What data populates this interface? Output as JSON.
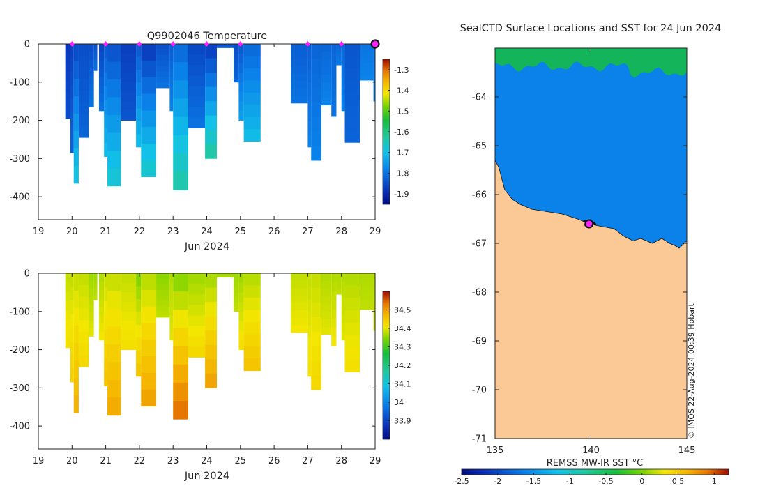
{
  "colors": {
    "land": "#fbc995",
    "deep_blue": "#0a3c9e",
    "ocean_blue": "#0a82ea",
    "ice_green": "#14b45a",
    "profile_marker": "#ff20ff",
    "coast": "#111111"
  },
  "chart_data": [
    {
      "id": "temperature_section",
      "type": "heatmap",
      "title": "Q9902046  Temperature",
      "xlabel": "Jun 2024",
      "ylabel": "",
      "x_ticks": [
        19,
        20,
        21,
        22,
        23,
        24,
        25,
        26,
        27,
        28,
        29
      ],
      "x_tick_labels": [
        "19",
        "20",
        "21",
        "22",
        "23",
        "24",
        "25",
        "26",
        "27",
        "28",
        "29"
      ],
      "xlim": [
        19,
        29
      ],
      "y_ticks": [
        0,
        -100,
        -200,
        -300,
        -400
      ],
      "y_tick_labels": [
        "0",
        "-100",
        "-200",
        "-300",
        "-400"
      ],
      "ylim": [
        -460,
        0
      ],
      "colorbar": {
        "min": -1.95,
        "max": -1.25,
        "ticks": [
          -1.3,
          -1.4,
          -1.5,
          -1.6,
          -1.7,
          -1.8,
          -1.9
        ],
        "tick_labels": [
          "-1.3",
          "-1.4",
          "-1.5",
          "-1.6",
          "-1.7",
          "-1.8",
          "-1.9"
        ]
      },
      "profile_markers_day": [
        20.0,
        21.0,
        22.0,
        23.0,
        24.0,
        25.0,
        27.0,
        28.0
      ],
      "current_position_day": 29.0,
      "profiles": [
        {
          "start": 19.8,
          "end": 20.0,
          "depth": 195,
          "surface": -1.88,
          "bottom": -1.85
        },
        {
          "start": 19.95,
          "end": 20.05,
          "depth": 285,
          "surface": -1.87,
          "bottom": -1.82
        },
        {
          "start": 20.05,
          "end": 20.2,
          "depth": 365,
          "surface": -1.86,
          "bottom": -1.68
        },
        {
          "start": 20.2,
          "end": 20.5,
          "depth": 245,
          "surface": -1.85,
          "bottom": -1.82
        },
        {
          "start": 20.5,
          "end": 20.65,
          "depth": 165,
          "surface": -1.85,
          "bottom": -1.8
        },
        {
          "start": 20.65,
          "end": 20.75,
          "depth": 70,
          "surface": -1.85,
          "bottom": -1.8
        },
        {
          "start": 20.8,
          "end": 20.95,
          "depth": 175,
          "surface": -1.86,
          "bottom": -1.8
        },
        {
          "start": 20.95,
          "end": 21.05,
          "depth": 295,
          "surface": -1.84,
          "bottom": -1.7
        },
        {
          "start": 21.05,
          "end": 21.45,
          "depth": 372,
          "surface": -1.85,
          "bottom": -1.67
        },
        {
          "start": 21.45,
          "end": 21.9,
          "depth": 200,
          "surface": -1.87,
          "bottom": -1.84
        },
        {
          "start": 21.9,
          "end": 22.05,
          "depth": 270,
          "surface": -1.84,
          "bottom": -1.7
        },
        {
          "start": 22.05,
          "end": 22.5,
          "depth": 348,
          "surface": -1.88,
          "bottom": -1.66
        },
        {
          "start": 22.5,
          "end": 22.9,
          "depth": 115,
          "surface": -1.85,
          "bottom": -1.8
        },
        {
          "start": 22.9,
          "end": 23.0,
          "depth": 175,
          "surface": -1.83,
          "bottom": -1.78
        },
        {
          "start": 23.0,
          "end": 23.45,
          "depth": 382,
          "surface": -1.82,
          "bottom": -1.63
        },
        {
          "start": 23.45,
          "end": 23.95,
          "depth": 220,
          "surface": -1.86,
          "bottom": -1.8
        },
        {
          "start": 23.95,
          "end": 24.3,
          "depth": 300,
          "surface": -1.88,
          "bottom": -1.62
        },
        {
          "start": 24.3,
          "end": 24.8,
          "depth": 10,
          "surface": -1.85,
          "bottom": -1.83
        },
        {
          "start": 24.8,
          "end": 24.95,
          "depth": 100,
          "surface": -1.85,
          "bottom": -1.82
        },
        {
          "start": 24.95,
          "end": 25.1,
          "depth": 200,
          "surface": -1.84,
          "bottom": -1.74
        },
        {
          "start": 25.1,
          "end": 25.6,
          "depth": 255,
          "surface": -1.82,
          "bottom": -1.7
        },
        {
          "start": 26.5,
          "end": 27.0,
          "depth": 155,
          "surface": -1.83,
          "bottom": -1.8
        },
        {
          "start": 27.0,
          "end": 27.1,
          "depth": 270,
          "surface": -1.83,
          "bottom": -1.78
        },
        {
          "start": 27.1,
          "end": 27.4,
          "depth": 305,
          "surface": -1.82,
          "bottom": -1.78
        },
        {
          "start": 27.4,
          "end": 27.7,
          "depth": 160,
          "surface": -1.82,
          "bottom": -1.78
        },
        {
          "start": 27.7,
          "end": 27.85,
          "depth": 190,
          "surface": -1.82,
          "bottom": -1.8
        },
        {
          "start": 27.85,
          "end": 28.0,
          "depth": 55,
          "surface": -1.82,
          "bottom": -1.79
        },
        {
          "start": 28.0,
          "end": 28.1,
          "depth": 175,
          "surface": -1.82,
          "bottom": -1.78
        },
        {
          "start": 28.1,
          "end": 28.55,
          "depth": 258,
          "surface": -1.84,
          "bottom": -1.82
        },
        {
          "start": 28.55,
          "end": 28.95,
          "depth": 95,
          "surface": -1.8,
          "bottom": -1.78
        },
        {
          "start": 28.95,
          "end": 29.0,
          "depth": 150,
          "surface": -1.8,
          "bottom": -1.78
        }
      ]
    },
    {
      "id": "salinity_section",
      "type": "heatmap",
      "title": "",
      "xlabel": "Jun 2024",
      "ylabel": "",
      "x_ticks": [
        19,
        20,
        21,
        22,
        23,
        24,
        25,
        26,
        27,
        28,
        29
      ],
      "x_tick_labels": [
        "19",
        "20",
        "21",
        "22",
        "23",
        "24",
        "25",
        "26",
        "27",
        "28",
        "29"
      ],
      "xlim": [
        19,
        29
      ],
      "y_ticks": [
        0,
        -100,
        -200,
        -300,
        -400
      ],
      "y_tick_labels": [
        "0",
        "-100",
        "-200",
        "-300",
        "-400"
      ],
      "ylim": [
        -460,
        0
      ],
      "colorbar": {
        "min": 33.8,
        "max": 34.6,
        "ticks": [
          34.5,
          34.4,
          34.3,
          34.2,
          34.1,
          34.0,
          33.9
        ],
        "tick_labels": [
          "34.5",
          "34.4",
          "34.3",
          "34.2",
          "34.1",
          "34",
          "33.9"
        ]
      },
      "profiles": [
        {
          "start": 19.8,
          "end": 20.0,
          "depth": 195,
          "surface": 34.38,
          "bottom": 34.42
        },
        {
          "start": 19.95,
          "end": 20.05,
          "depth": 285,
          "surface": 34.38,
          "bottom": 34.44
        },
        {
          "start": 20.05,
          "end": 20.2,
          "depth": 365,
          "surface": 34.38,
          "bottom": 34.48
        },
        {
          "start": 20.2,
          "end": 20.5,
          "depth": 245,
          "surface": 34.38,
          "bottom": 34.43
        },
        {
          "start": 20.5,
          "end": 20.65,
          "depth": 165,
          "surface": 34.36,
          "bottom": 34.4
        },
        {
          "start": 20.65,
          "end": 20.75,
          "depth": 70,
          "surface": 34.36,
          "bottom": 34.38
        },
        {
          "start": 20.8,
          "end": 20.95,
          "depth": 175,
          "surface": 34.37,
          "bottom": 34.41
        },
        {
          "start": 20.95,
          "end": 21.05,
          "depth": 295,
          "surface": 34.38,
          "bottom": 34.46
        },
        {
          "start": 21.05,
          "end": 21.45,
          "depth": 372,
          "surface": 34.38,
          "bottom": 34.49
        },
        {
          "start": 21.45,
          "end": 21.9,
          "depth": 200,
          "surface": 34.38,
          "bottom": 34.42
        },
        {
          "start": 21.9,
          "end": 22.05,
          "depth": 270,
          "surface": 34.34,
          "bottom": 34.46
        },
        {
          "start": 22.05,
          "end": 22.5,
          "depth": 348,
          "surface": 34.37,
          "bottom": 34.5
        },
        {
          "start": 22.5,
          "end": 22.9,
          "depth": 115,
          "surface": 34.35,
          "bottom": 34.38
        },
        {
          "start": 22.9,
          "end": 23.0,
          "depth": 175,
          "surface": 34.37,
          "bottom": 34.4
        },
        {
          "start": 23.0,
          "end": 23.45,
          "depth": 382,
          "surface": 34.34,
          "bottom": 34.55
        },
        {
          "start": 23.45,
          "end": 23.95,
          "depth": 220,
          "surface": 34.36,
          "bottom": 34.43
        },
        {
          "start": 23.95,
          "end": 24.3,
          "depth": 300,
          "surface": 34.36,
          "bottom": 34.5
        },
        {
          "start": 24.3,
          "end": 24.8,
          "depth": 10,
          "surface": 34.36,
          "bottom": 34.37
        },
        {
          "start": 24.8,
          "end": 24.95,
          "depth": 100,
          "surface": 34.36,
          "bottom": 34.38
        },
        {
          "start": 24.95,
          "end": 25.1,
          "depth": 200,
          "surface": 34.36,
          "bottom": 34.42
        },
        {
          "start": 25.1,
          "end": 25.6,
          "depth": 255,
          "surface": 34.37,
          "bottom": 34.46
        },
        {
          "start": 26.5,
          "end": 27.0,
          "depth": 155,
          "surface": 34.38,
          "bottom": 34.41
        },
        {
          "start": 27.0,
          "end": 27.1,
          "depth": 270,
          "surface": 34.38,
          "bottom": 34.42
        },
        {
          "start": 27.1,
          "end": 27.4,
          "depth": 305,
          "surface": 34.38,
          "bottom": 34.43
        },
        {
          "start": 27.4,
          "end": 27.7,
          "depth": 160,
          "surface": 34.37,
          "bottom": 34.4
        },
        {
          "start": 27.7,
          "end": 27.85,
          "depth": 190,
          "surface": 34.37,
          "bottom": 34.41
        },
        {
          "start": 27.85,
          "end": 28.0,
          "depth": 55,
          "surface": 34.37,
          "bottom": 34.38
        },
        {
          "start": 28.0,
          "end": 28.1,
          "depth": 175,
          "surface": 34.37,
          "bottom": 34.4
        },
        {
          "start": 28.1,
          "end": 28.55,
          "depth": 258,
          "surface": 34.37,
          "bottom": 34.42
        },
        {
          "start": 28.55,
          "end": 28.95,
          "depth": 95,
          "surface": 34.37,
          "bottom": 34.38
        },
        {
          "start": 28.95,
          "end": 29.0,
          "depth": 150,
          "surface": 34.37,
          "bottom": 34.39
        }
      ]
    },
    {
      "id": "sst_map",
      "type": "heatmap",
      "title": "SealCTD Surface Locations and SST for 24 Jun 2024",
      "xlabel": "",
      "ylabel": "",
      "xlim": [
        135,
        145
      ],
      "ylim": [
        -71,
        -63
      ],
      "x_ticks": [
        135,
        140,
        145
      ],
      "x_tick_labels": [
        "135",
        "140",
        "145"
      ],
      "y_ticks": [
        -64,
        -65,
        -66,
        -67,
        -68,
        -69,
        -70,
        -71
      ],
      "y_tick_labels": [
        "-64",
        "-65",
        "-66",
        "-67",
        "-68",
        "-69",
        "-70",
        "-71"
      ],
      "ocean_sst_c": -1.8,
      "ice_edge_sst_c": -0.9,
      "track_position": {
        "lon": 139.9,
        "lat": -66.6
      },
      "colorbar": {
        "label": "REMSS MW-IR SST °C",
        "min": -2.5,
        "max": 1.2,
        "ticks": [
          -2.5,
          -2,
          -1.5,
          -1,
          -0.5,
          0,
          0.5,
          1
        ],
        "tick_labels": [
          "-2.5",
          "-2",
          "-1.5",
          "-1",
          "-0.5",
          "0",
          "0.5",
          "1"
        ]
      },
      "credit": "© IMOS 22-Aug-2024 00:39 Hobart"
    }
  ]
}
